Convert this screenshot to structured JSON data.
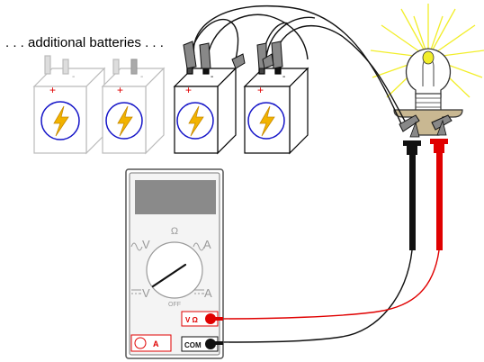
{
  "caption": ". . . additional batteries . . .",
  "batteries": [
    {
      "state": "faded",
      "positive": "+",
      "negative": "-"
    },
    {
      "state": "faded",
      "positive": "+",
      "negative": "-"
    },
    {
      "state": "connected",
      "positive": "+",
      "negative": "-"
    },
    {
      "state": "connected",
      "positive": "+",
      "negative": "-"
    }
  ],
  "meter": {
    "omega_label": "Ω",
    "ac_volts": "V",
    "ac_amps": "A",
    "dc_volts": "V",
    "dc_amps": "A",
    "off_label": "OFF",
    "jack_volts_ohms": "V Ω",
    "jack_com": "COM",
    "jack_amps": "A"
  },
  "colors": {
    "positive_lead": "#e00000",
    "negative_lead": "#111111",
    "bulb_glow": "#f2ee2a",
    "lightning": "#f2b300",
    "battery_badge": "#1515c8",
    "meter_screen": "#8a8a8a"
  }
}
